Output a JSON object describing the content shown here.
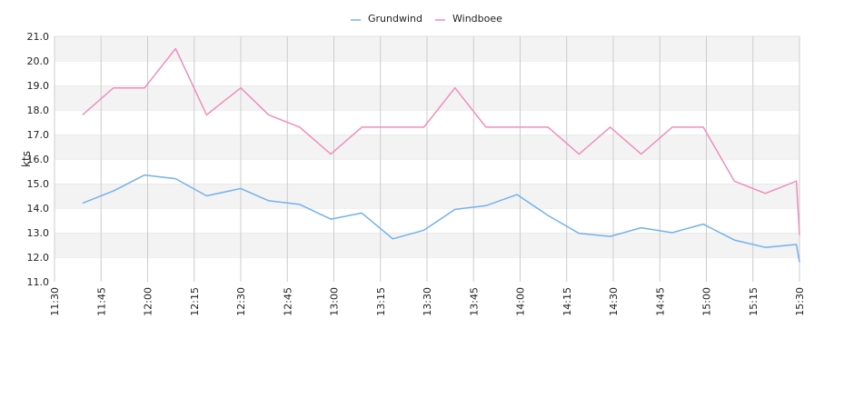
{
  "chart_data": {
    "type": "line",
    "ylabel": "kts",
    "ylim": [
      11.0,
      21.0
    ],
    "y_ticks": [
      "11.0",
      "12.0",
      "13.0",
      "14.0",
      "15.0",
      "16.0",
      "17.0",
      "18.0",
      "19.0",
      "20.0",
      "21.0"
    ],
    "x_ticks": [
      "11:30",
      "11:45",
      "12:00",
      "12:15",
      "12:30",
      "12:45",
      "13:00",
      "13:15",
      "13:30",
      "13:45",
      "14:00",
      "14:15",
      "14:30",
      "14:45",
      "15:00",
      "15:15",
      "15:30"
    ],
    "grid": "horizontal bands and vertical lines",
    "legend_position": "top-center",
    "series": [
      {
        "name": "Grundwind",
        "color": "#72b2ec",
        "x": [
          "11:39",
          "11:49",
          "11:59",
          "12:09",
          "12:19",
          "12:30",
          "12:39",
          "12:49",
          "12:59",
          "13:09",
          "13:19",
          "13:29",
          "13:39",
          "13:49",
          "13:59",
          "14:09",
          "14:19",
          "14:29",
          "14:39",
          "14:49",
          "14:59",
          "15:09",
          "15:19",
          "15:29",
          "15:30"
        ],
        "values": [
          14.2,
          14.7,
          15.35,
          15.2,
          14.5,
          14.8,
          14.3,
          14.15,
          13.55,
          13.8,
          12.75,
          13.1,
          13.95,
          14.1,
          14.55,
          13.7,
          12.97,
          12.85,
          13.2,
          13.0,
          13.35,
          12.7,
          12.4,
          12.52,
          11.8
        ]
      },
      {
        "name": "Windboee",
        "color": "#ee8fbc",
        "x": [
          "11:39",
          "11:49",
          "11:59",
          "12:09",
          "12:19",
          "12:30",
          "12:39",
          "12:49",
          "12:59",
          "13:09",
          "13:19",
          "13:29",
          "13:39",
          "13:49",
          "13:59",
          "14:09",
          "14:19",
          "14:29",
          "14:39",
          "14:49",
          "14:59",
          "15:09",
          "15:19",
          "15:29",
          "15:30"
        ],
        "values": [
          17.8,
          18.9,
          18.9,
          20.5,
          17.8,
          18.9,
          17.8,
          17.3,
          16.2,
          17.3,
          17.3,
          17.3,
          18.9,
          17.3,
          17.3,
          17.3,
          16.2,
          17.3,
          16.2,
          17.3,
          17.3,
          15.1,
          14.6,
          15.1,
          12.9
        ]
      }
    ]
  }
}
